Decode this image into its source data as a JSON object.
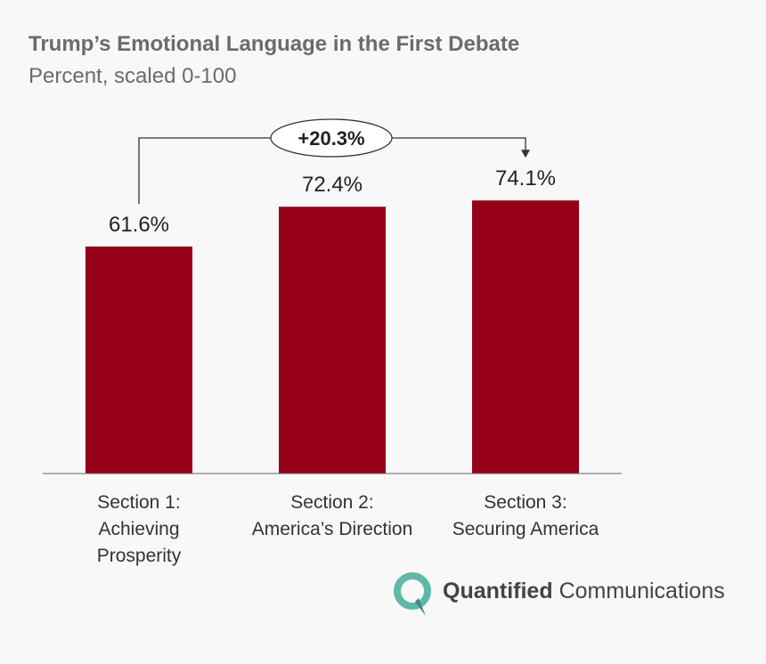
{
  "chart_data": {
    "type": "bar",
    "title": "Trump’s Emotional Language in the First Debate",
    "subtitle": "Percent, scaled 0-100",
    "categories": [
      "Section 1:\nAchieving\nProsperity",
      "Section 2:\nAmerica’s Direction",
      "Section 3:\nSecuring America"
    ],
    "values": [
      61.6,
      72.4,
      74.1
    ],
    "value_labels": [
      "61.6%",
      "72.4%",
      "74.1%"
    ],
    "color": "#960018",
    "ylim": [
      0,
      100
    ],
    "annotation": "+20.3%",
    "brand": [
      "Quantified",
      "Communications"
    ]
  }
}
